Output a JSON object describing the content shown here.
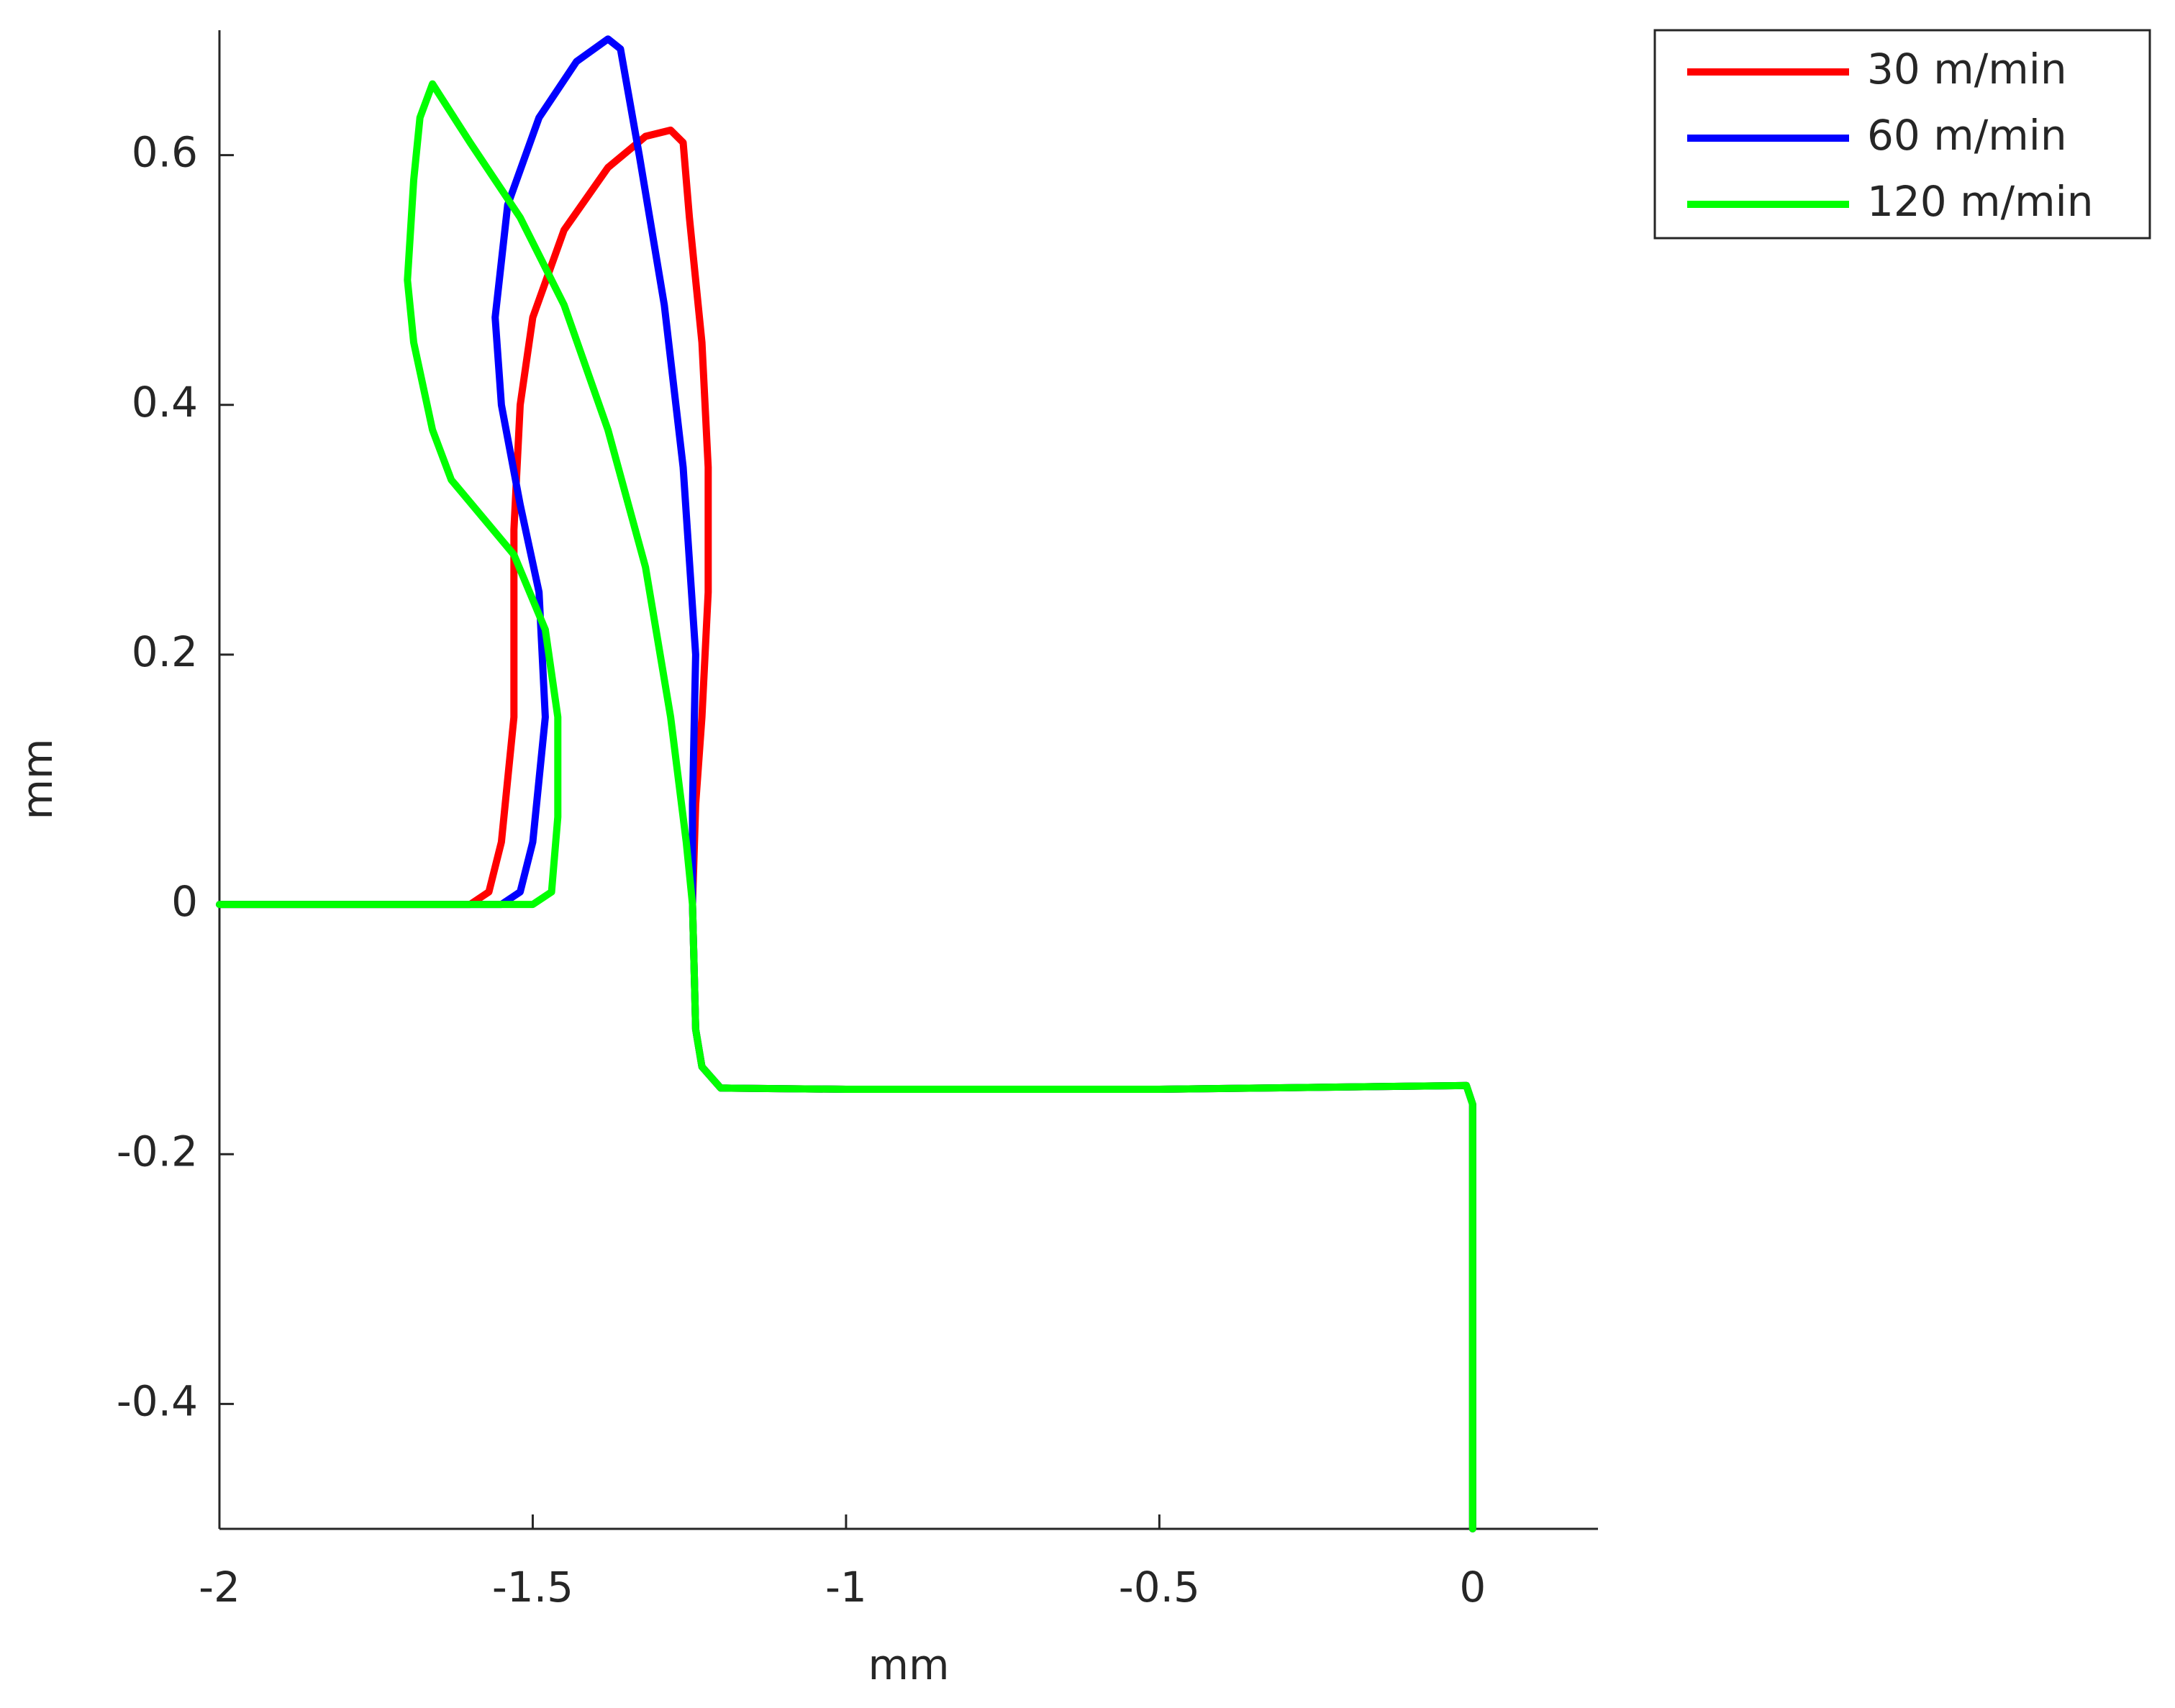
{
  "chart_data": {
    "type": "line",
    "xlabel": "mm",
    "ylabel": "mm",
    "xlim": [
      -2,
      0.2
    ],
    "ylim": [
      -0.5,
      0.7
    ],
    "xticks": [
      -2,
      -1.5,
      -1,
      -0.5,
      0
    ],
    "yticks": [
      -0.4,
      -0.2,
      0,
      0.2,
      0.4,
      0.6
    ],
    "grid": false,
    "legend": "outside-upper-right",
    "series": [
      {
        "name": "30 m/min",
        "color": "#ff0000",
        "x": [
          -2,
          -1.6,
          -1.57,
          -1.55,
          -1.53,
          -1.53,
          -1.52,
          -1.5,
          -1.45,
          -1.38,
          -1.32,
          -1.28,
          -1.26,
          -1.25,
          -1.23,
          -1.22,
          -1.22,
          -1.23,
          -1.24,
          -1.245,
          -1.24,
          -1.23,
          -1.2,
          -1,
          -0.5,
          -0.01,
          0,
          0
        ],
        "values": [
          0,
          0,
          0.01,
          0.05,
          0.15,
          0.3,
          0.4,
          0.47,
          0.54,
          0.59,
          0.615,
          0.62,
          0.61,
          0.55,
          0.45,
          0.35,
          0.25,
          0.15,
          0.08,
          0,
          -0.1,
          -0.13,
          -0.147,
          -0.148,
          -0.148,
          -0.145,
          -0.16,
          -0.5
        ]
      },
      {
        "name": "60 m/min",
        "color": "#0000ff",
        "x": [
          -2,
          -1.55,
          -1.52,
          -1.5,
          -1.48,
          -1.49,
          -1.52,
          -1.55,
          -1.56,
          -1.54,
          -1.49,
          -1.43,
          -1.38,
          -1.36,
          -1.33,
          -1.29,
          -1.26,
          -1.24,
          -1.245,
          -1.245,
          -1.24,
          -1.23,
          -1.2,
          -1,
          -0.5,
          -0.01,
          0,
          0
        ],
        "values": [
          0,
          0,
          0.01,
          0.05,
          0.15,
          0.25,
          0.32,
          0.4,
          0.47,
          0.56,
          0.63,
          0.675,
          0.693,
          0.685,
          0.6,
          0.48,
          0.35,
          0.2,
          0.08,
          0,
          -0.1,
          -0.13,
          -0.147,
          -0.148,
          -0.148,
          -0.145,
          -0.16,
          -0.5
        ]
      },
      {
        "name": "120 m/min",
        "color": "#00ff00",
        "x": [
          -2,
          -1.5,
          -1.47,
          -1.46,
          -1.46,
          -1.48,
          -1.53,
          -1.58,
          -1.63,
          -1.66,
          -1.69,
          -1.7,
          -1.69,
          -1.68,
          -1.66,
          -1.6,
          -1.52,
          -1.45,
          -1.38,
          -1.32,
          -1.28,
          -1.255,
          -1.245,
          -1.24,
          -1.23,
          -1.2,
          -1,
          -0.5,
          -0.01,
          0,
          0
        ],
        "values": [
          0,
          0,
          0.01,
          0.07,
          0.15,
          0.22,
          0.28,
          0.31,
          0.34,
          0.38,
          0.45,
          0.5,
          0.58,
          0.63,
          0.657,
          0.61,
          0.55,
          0.48,
          0.38,
          0.27,
          0.15,
          0.05,
          0,
          -0.1,
          -0.13,
          -0.147,
          -0.148,
          -0.148,
          -0.145,
          -0.16,
          -0.5
        ]
      }
    ]
  }
}
